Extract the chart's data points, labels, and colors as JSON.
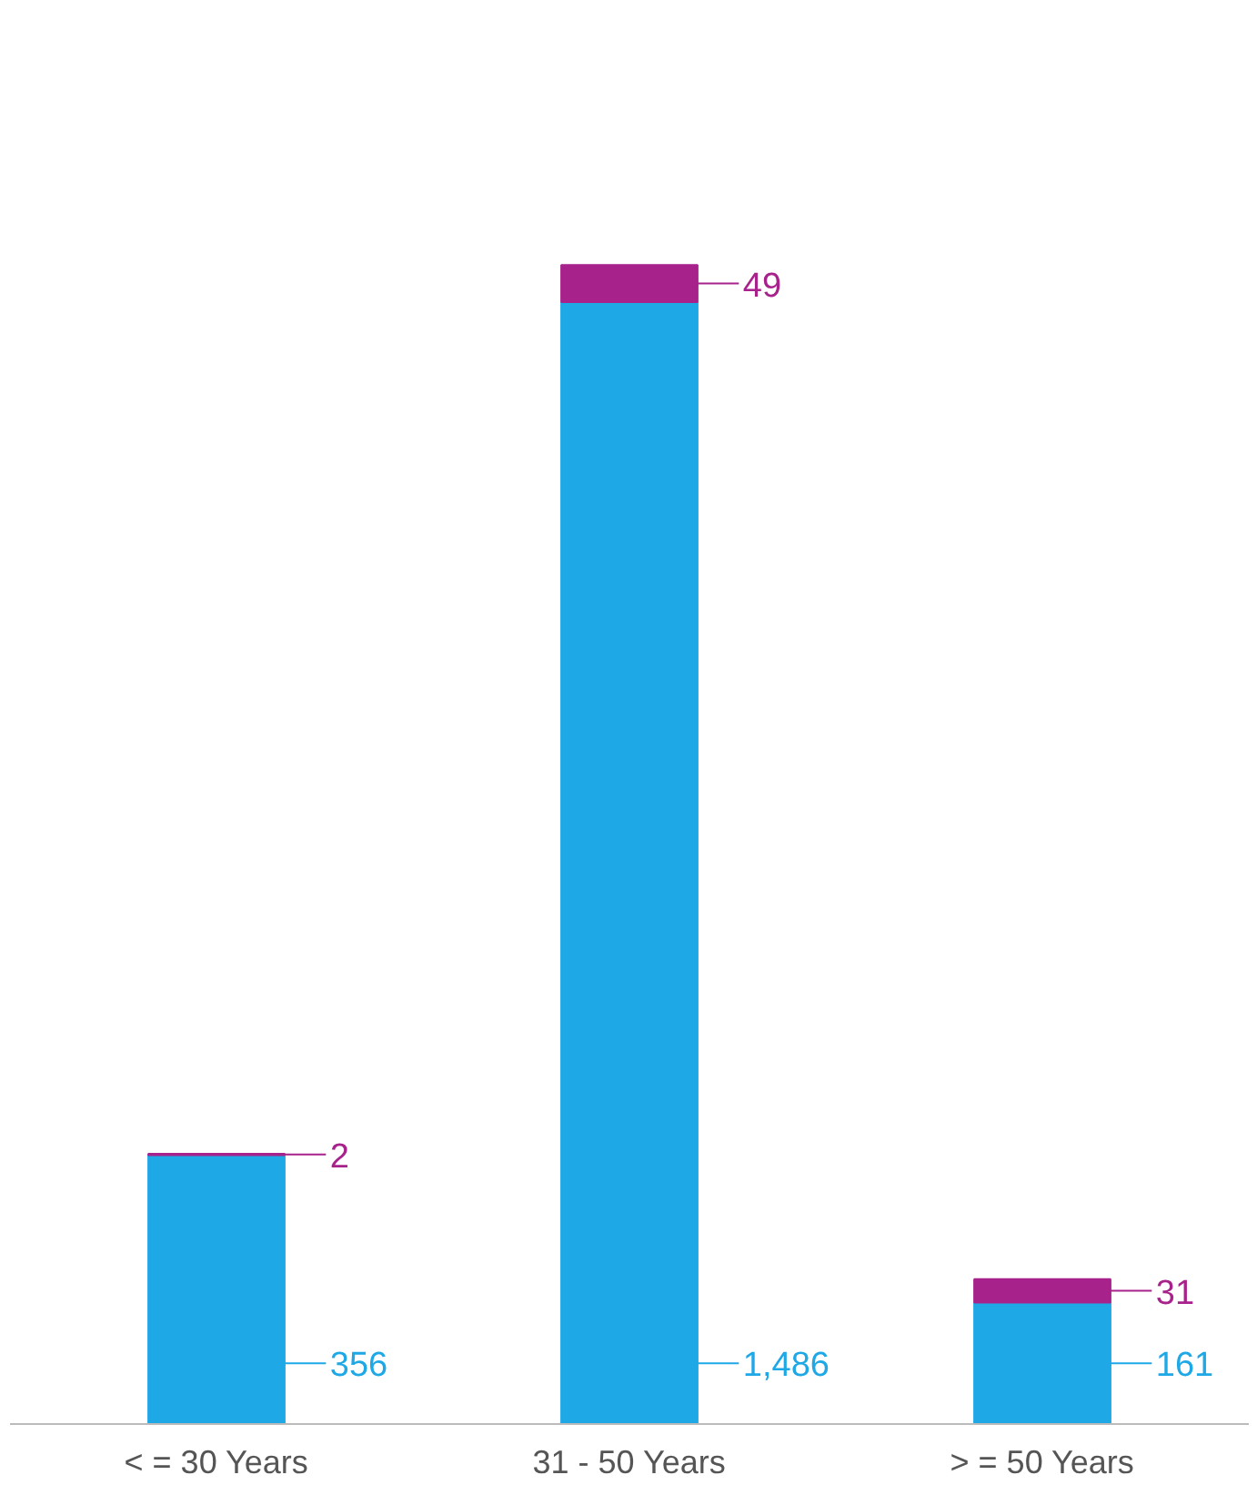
{
  "chart_data": {
    "type": "bar",
    "stacked": true,
    "data_labels": true,
    "categories": [
      "< = 30 Years",
      "31 - 50 Years",
      "> = 50 Years"
    ],
    "tick_labels": "x",
    "series": [
      {
        "color": "#1ea8e6",
        "values": [
          356,
          1486,
          161
        ],
        "value_labels": [
          "356",
          "1,486",
          "161"
        ]
      },
      {
        "color": "#a8228c",
        "values": [
          2,
          49,
          31
        ]
      }
    ]
  }
}
